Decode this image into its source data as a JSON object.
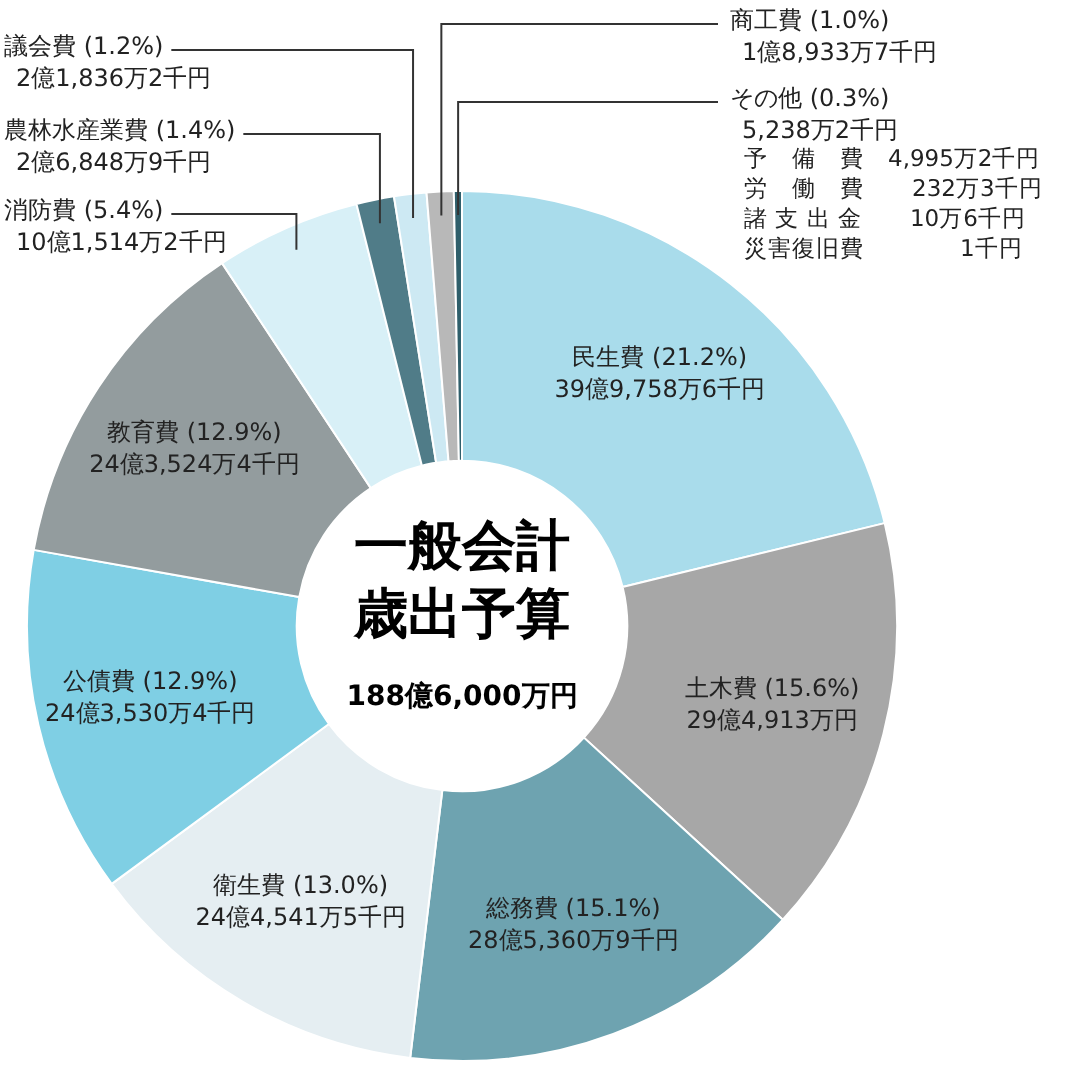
{
  "chart_data": {
    "type": "donut",
    "title": "一般会計歳出予算",
    "subtitle": "188億6,000万円",
    "categories": [
      "民生費",
      "土木費",
      "総務費",
      "衛生費",
      "公債費",
      "教育費",
      "消防費",
      "農林水産業費",
      "議会費",
      "商工費",
      "その他"
    ],
    "values": [
      21.2,
      15.6,
      15.1,
      13.0,
      12.9,
      12.9,
      5.4,
      1.4,
      1.2,
      1.0,
      0.3
    ],
    "value_labels": [
      "(21.2%)\n39億9,758万6千円",
      "(15.6%)\n29億4,913万円",
      "(15.1%)\n28億5,360万9千円",
      "(13.0%)\n24億4,541万5千円",
      "(12.9%)\n24億3,530万4千円",
      "(12.9%)\n24億3,524万4千円",
      "(5.4%)\n10億1,514万2千円",
      "(1.4%)\n2億6,848万9千円",
      "(1.2%)\n2億1,836万2千円",
      "(1.0%)\n1億8,933万7千円",
      "(0.3%)\n5,238万2千円"
    ],
    "colors": [
      "#a9dceb",
      "#a7a7a7",
      "#6ea3b0",
      "#e5eef2",
      "#7fcfe4",
      "#939c9e",
      "#d8f0f7",
      "#507c88",
      "#cde9f3",
      "#b8b8b8",
      "#2f5f6b"
    ],
    "annotations": [
      "予　備　費　4,995万2千円",
      "労　働　費　　232万3千円",
      "諸 支 出 金　　10万6千円",
      "災害復旧費　　　　1千円"
    ],
    "legend": false
  }
}
